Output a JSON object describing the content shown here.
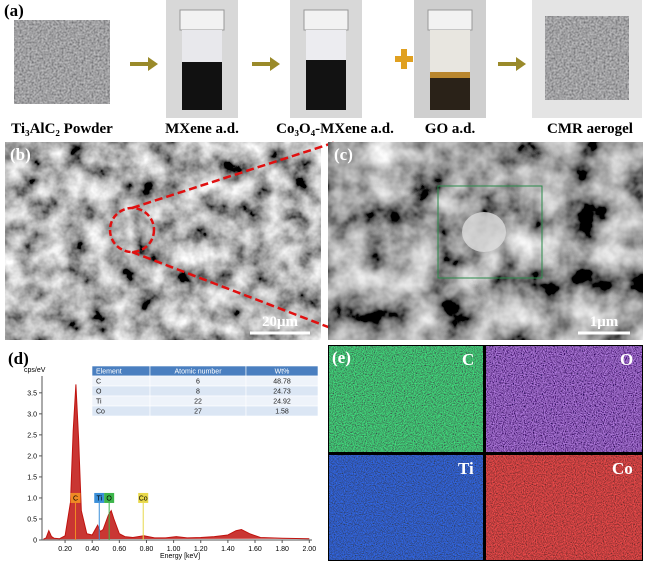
{
  "panel_a": {
    "label": "(a)",
    "steps": [
      "Ti₃AlC₂ Powder",
      "MXene a.d.",
      "Co₃O₄-MXene a.d.",
      "GO a.d.",
      "CMR aerogel"
    ]
  },
  "panel_b": {
    "label": "(b)",
    "scale_bar": "20μm"
  },
  "panel_c": {
    "label": "(c)",
    "scale_bar": "1μm"
  },
  "panel_d": {
    "label": "(d)",
    "table": {
      "header": [
        "Element",
        "Atomic number",
        "Wt%"
      ],
      "rows": [
        [
          "C",
          "6",
          "48.78"
        ],
        [
          "O",
          "8",
          "24.73"
        ],
        [
          "Ti",
          "22",
          "24.92"
        ],
        [
          "Co",
          "27",
          "1.58"
        ]
      ]
    }
  },
  "chart_data": {
    "type": "line",
    "y_label": "cps/eV",
    "x_label": "Energy [keV]",
    "color": "#c0130f",
    "x": [
      0.04,
      0.06,
      0.08,
      0.1,
      0.12,
      0.16,
      0.2,
      0.24,
      0.26,
      0.28,
      0.3,
      0.32,
      0.36,
      0.4,
      0.44,
      0.46,
      0.48,
      0.52,
      0.54,
      0.56,
      0.6,
      0.64,
      0.7,
      0.78,
      0.86,
      0.94,
      1.02,
      1.1,
      1.2,
      1.3,
      1.4,
      1.46,
      1.5,
      1.56,
      1.64,
      1.8,
      2.0
    ],
    "values": [
      0.02,
      0.05,
      0.22,
      0.08,
      0.04,
      0.03,
      0.1,
      0.9,
      2.6,
      3.7,
      2.4,
      0.7,
      0.15,
      0.12,
      0.35,
      0.2,
      0.25,
      0.6,
      0.7,
      0.5,
      0.15,
      0.08,
      0.06,
      0.1,
      0.05,
      0.05,
      0.08,
      0.05,
      0.06,
      0.08,
      0.12,
      0.22,
      0.25,
      0.15,
      0.06,
      0.04,
      0.03
    ],
    "xlim": [
      0.03,
      2.02
    ],
    "ylim": [
      0,
      3.9
    ],
    "yticks": [
      0,
      0.5,
      {
        "value": 1,
        "label": "1.0"
      },
      1.5,
      {
        "value": 2,
        "label": "2.0"
      },
      2.5,
      {
        "value": 3,
        "label": "3.0"
      },
      3.5
    ],
    "xticks": [
      {
        "value": 0.2,
        "label": "0.20"
      },
      {
        "value": 0.4,
        "label": "0.40"
      },
      {
        "value": 0.6,
        "label": "0.60"
      },
      {
        "value": 0.8,
        "label": "0.80"
      },
      {
        "value": 1,
        "label": "1.00"
      },
      {
        "value": 1.2,
        "label": "1.20"
      },
      {
        "value": 1.4,
        "label": "1.40"
      },
      {
        "value": 1.6,
        "label": "1.60"
      },
      {
        "value": 1.8,
        "label": "1.80"
      },
      {
        "value": 2,
        "label": "2.00"
      }
    ],
    "annotations": [
      {
        "text": "C",
        "x": 0.277,
        "color": "#f08a24"
      },
      {
        "text": "Ti",
        "x": 0.452,
        "color": "#3a8fd9"
      },
      {
        "text": "O",
        "x": 0.525,
        "color": "#3cb54a"
      },
      {
        "text": "Co",
        "x": 0.776,
        "color": "#e8d84a"
      }
    ]
  },
  "panel_e": {
    "label": "(e)",
    "elements": [
      "C",
      "O",
      "Ti",
      "Co"
    ]
  }
}
